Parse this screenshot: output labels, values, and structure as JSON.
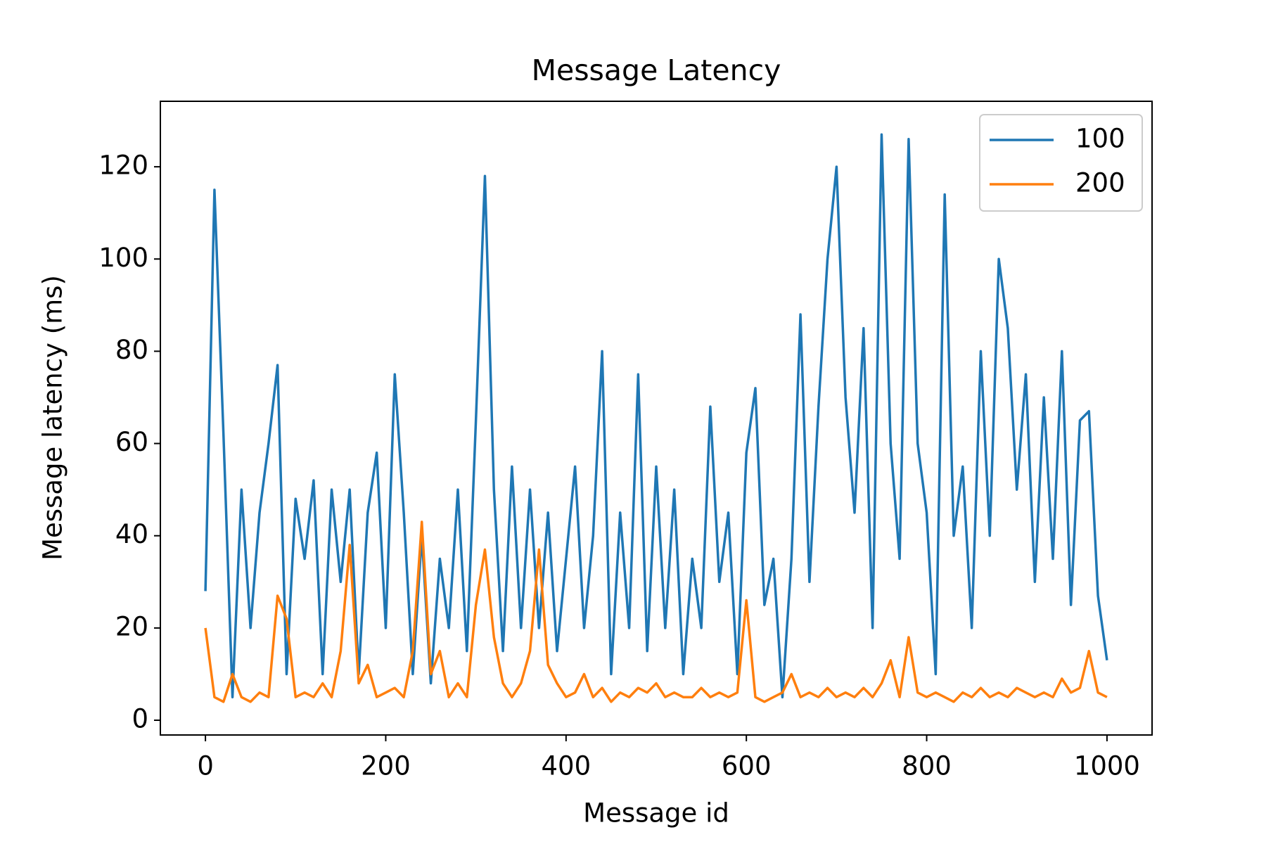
{
  "chart_data": {
    "type": "line",
    "title": "Message Latency",
    "x_label": "Message id",
    "y_label": "Message latency (ms)",
    "x": [
      0,
      10,
      20,
      30,
      40,
      50,
      60,
      70,
      80,
      90,
      100,
      110,
      120,
      130,
      140,
      150,
      160,
      170,
      180,
      190,
      200,
      210,
      220,
      230,
      240,
      250,
      260,
      270,
      280,
      290,
      300,
      310,
      320,
      330,
      340,
      350,
      360,
      370,
      380,
      390,
      400,
      410,
      420,
      430,
      440,
      450,
      460,
      470,
      480,
      490,
      500,
      510,
      520,
      530,
      540,
      550,
      560,
      570,
      580,
      590,
      600,
      610,
      620,
      630,
      640,
      650,
      660,
      670,
      680,
      690,
      700,
      710,
      720,
      730,
      740,
      750,
      760,
      770,
      780,
      790,
      800,
      810,
      820,
      830,
      840,
      850,
      860,
      870,
      880,
      890,
      900,
      910,
      920,
      930,
      940,
      950,
      960,
      970,
      980,
      990,
      1000
    ],
    "series": [
      {
        "name": "100",
        "color": "#1f77b4",
        "values": [
          28,
          115,
          62,
          5,
          50,
          20,
          45,
          60,
          77,
          10,
          48,
          35,
          52,
          10,
          50,
          30,
          50,
          10,
          45,
          58,
          20,
          75,
          45,
          10,
          40,
          8,
          35,
          20,
          50,
          15,
          65,
          118,
          50,
          15,
          55,
          20,
          50,
          20,
          45,
          15,
          35,
          55,
          20,
          40,
          80,
          10,
          45,
          20,
          75,
          15,
          55,
          20,
          50,
          10,
          35,
          20,
          68,
          30,
          45,
          10,
          58,
          72,
          25,
          35,
          5,
          35,
          88,
          30,
          68,
          100,
          120,
          70,
          45,
          85,
          20,
          127,
          60,
          35,
          126,
          60,
          45,
          10,
          114,
          40,
          55,
          20,
          80,
          40,
          100,
          85,
          50,
          75,
          30,
          70,
          35,
          80,
          25,
          65,
          67,
          27,
          13
        ]
      },
      {
        "name": "200",
        "color": "#ff7f0e",
        "values": [
          20,
          5,
          4,
          10,
          5,
          4,
          6,
          5,
          27,
          22,
          5,
          6,
          5,
          8,
          5,
          15,
          38,
          8,
          12,
          5,
          6,
          7,
          5,
          15,
          43,
          10,
          15,
          5,
          8,
          5,
          25,
          37,
          18,
          8,
          5,
          8,
          15,
          37,
          12,
          8,
          5,
          6,
          10,
          5,
          7,
          4,
          6,
          5,
          7,
          6,
          8,
          5,
          6,
          5,
          5,
          7,
          5,
          6,
          5,
          6,
          26,
          5,
          4,
          5,
          6,
          10,
          5,
          6,
          5,
          7,
          5,
          6,
          5,
          7,
          5,
          8,
          13,
          5,
          18,
          6,
          5,
          6,
          5,
          4,
          6,
          5,
          7,
          5,
          6,
          5,
          7,
          6,
          5,
          6,
          5,
          9,
          6,
          7,
          15,
          6,
          5
        ]
      }
    ],
    "xlim": [
      -50,
      1050
    ],
    "xticks": [
      0,
      200,
      400,
      600,
      800,
      1000
    ],
    "ylim": [
      -3.2,
      134.2
    ],
    "yticks": [
      0,
      20,
      40,
      60,
      80,
      100,
      120
    ],
    "grid": false,
    "legend": "upper right"
  }
}
